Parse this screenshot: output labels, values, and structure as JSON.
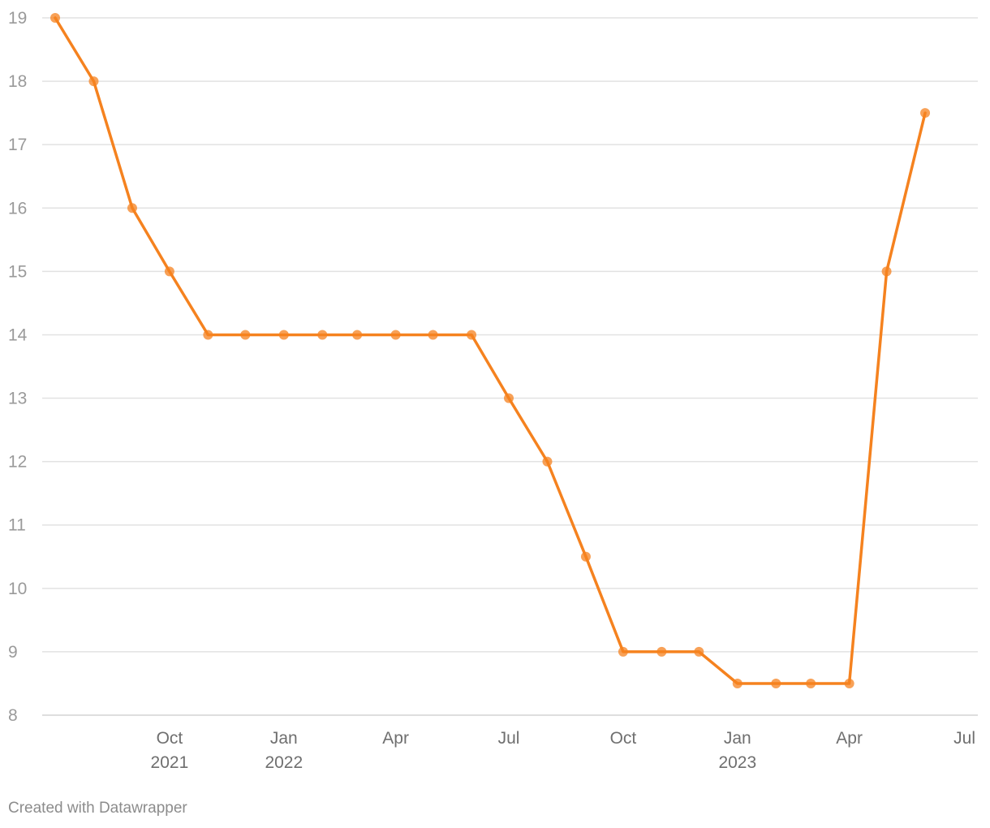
{
  "chart_data": {
    "type": "line",
    "title": "",
    "xlabel": "",
    "ylabel": "",
    "ylim": [
      8,
      19
    ],
    "y_ticks": [
      8,
      9,
      10,
      11,
      12,
      13,
      14,
      15,
      16,
      17,
      18,
      19
    ],
    "x_range": [
      "2021-07-01",
      "2023-07-01"
    ],
    "x_ticks": [
      {
        "date": "2021-10-01",
        "label": "Oct",
        "sublabel": "2021"
      },
      {
        "date": "2022-01-01",
        "label": "Jan",
        "sublabel": "2022"
      },
      {
        "date": "2022-04-01",
        "label": "Apr",
        "sublabel": ""
      },
      {
        "date": "2022-07-01",
        "label": "Jul",
        "sublabel": ""
      },
      {
        "date": "2022-10-01",
        "label": "Oct",
        "sublabel": ""
      },
      {
        "date": "2023-01-01",
        "label": "Jan",
        "sublabel": "2023"
      },
      {
        "date": "2023-04-01",
        "label": "Apr",
        "sublabel": ""
      },
      {
        "date": "2023-07-01",
        "label": "Jul",
        "sublabel": ""
      }
    ],
    "grid": true,
    "series": [
      {
        "color": "#f5821f",
        "points": [
          {
            "x": "2021-07-01",
            "y": 19
          },
          {
            "x": "2021-08-01",
            "y": 18
          },
          {
            "x": "2021-09-01",
            "y": 16
          },
          {
            "x": "2021-10-01",
            "y": 15
          },
          {
            "x": "2021-11-01",
            "y": 14
          },
          {
            "x": "2021-12-01",
            "y": 14
          },
          {
            "x": "2022-01-01",
            "y": 14
          },
          {
            "x": "2022-02-01",
            "y": 14
          },
          {
            "x": "2022-03-01",
            "y": 14
          },
          {
            "x": "2022-04-01",
            "y": 14
          },
          {
            "x": "2022-05-01",
            "y": 14
          },
          {
            "x": "2022-06-01",
            "y": 14
          },
          {
            "x": "2022-07-01",
            "y": 13
          },
          {
            "x": "2022-08-01",
            "y": 12
          },
          {
            "x": "2022-09-01",
            "y": 10.5
          },
          {
            "x": "2022-10-01",
            "y": 9
          },
          {
            "x": "2022-11-01",
            "y": 9
          },
          {
            "x": "2022-12-01",
            "y": 9
          },
          {
            "x": "2023-01-01",
            "y": 8.5
          },
          {
            "x": "2023-02-01",
            "y": 8.5
          },
          {
            "x": "2023-03-01",
            "y": 8.5
          },
          {
            "x": "2023-04-01",
            "y": 8.5
          },
          {
            "x": "2023-05-01",
            "y": 15
          },
          {
            "x": "2023-06-01",
            "y": 17.5
          }
        ]
      }
    ]
  },
  "footer": {
    "credit": "Created with Datawrapper"
  }
}
